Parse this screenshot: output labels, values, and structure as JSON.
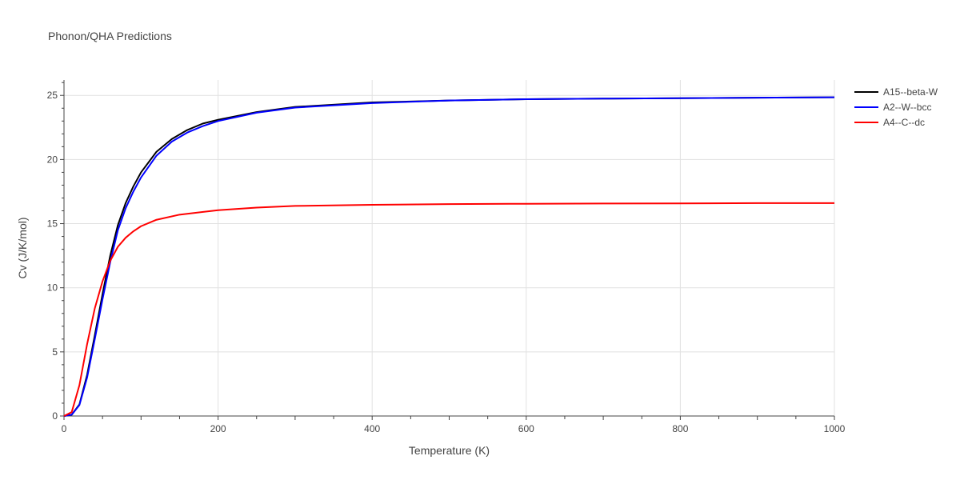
{
  "chart_data": {
    "type": "line",
    "title": "Phonon/QHA Predictions",
    "xlabel": "Temperature (K)",
    "ylabel": "Cv (J/K/mol)",
    "xlim": [
      0,
      1000
    ],
    "ylim": [
      0,
      26.2
    ],
    "x_ticks": [
      0,
      200,
      400,
      600,
      800,
      1000
    ],
    "y_ticks": [
      0,
      5,
      10,
      15,
      20,
      25
    ],
    "grid": true,
    "legend_position": "top-right",
    "series": [
      {
        "name": "A15--beta-W",
        "color": "#000000",
        "points": [
          [
            0,
            0
          ],
          [
            10,
            0.1
          ],
          [
            20,
            0.9
          ],
          [
            30,
            3.2
          ],
          [
            40,
            6.3
          ],
          [
            50,
            9.5
          ],
          [
            60,
            12.5
          ],
          [
            70,
            14.9
          ],
          [
            80,
            16.6
          ],
          [
            90,
            17.9
          ],
          [
            100,
            19.0
          ],
          [
            120,
            20.6
          ],
          [
            140,
            21.6
          ],
          [
            160,
            22.3
          ],
          [
            180,
            22.8
          ],
          [
            200,
            23.1
          ],
          [
            250,
            23.7
          ],
          [
            300,
            24.1
          ],
          [
            400,
            24.45
          ],
          [
            500,
            24.6
          ],
          [
            600,
            24.7
          ],
          [
            700,
            24.75
          ],
          [
            800,
            24.78
          ],
          [
            900,
            24.82
          ],
          [
            1000,
            24.85
          ]
        ]
      },
      {
        "name": "A2--W--bcc",
        "color": "#0000ff",
        "points": [
          [
            0,
            0
          ],
          [
            10,
            0.1
          ],
          [
            20,
            0.85
          ],
          [
            30,
            3.0
          ],
          [
            40,
            6.0
          ],
          [
            50,
            9.1
          ],
          [
            60,
            12.0
          ],
          [
            70,
            14.5
          ],
          [
            80,
            16.2
          ],
          [
            90,
            17.5
          ],
          [
            100,
            18.6
          ],
          [
            120,
            20.3
          ],
          [
            140,
            21.4
          ],
          [
            160,
            22.1
          ],
          [
            180,
            22.6
          ],
          [
            200,
            23.0
          ],
          [
            250,
            23.65
          ],
          [
            300,
            24.05
          ],
          [
            400,
            24.4
          ],
          [
            500,
            24.6
          ],
          [
            600,
            24.7
          ],
          [
            700,
            24.75
          ],
          [
            800,
            24.78
          ],
          [
            900,
            24.82
          ],
          [
            1000,
            24.85
          ]
        ]
      },
      {
        "name": "A4--C--dc",
        "color": "#ff0000",
        "points": [
          [
            0,
            0
          ],
          [
            10,
            0.3
          ],
          [
            20,
            2.4
          ],
          [
            30,
            5.6
          ],
          [
            40,
            8.4
          ],
          [
            50,
            10.5
          ],
          [
            60,
            12.1
          ],
          [
            70,
            13.2
          ],
          [
            80,
            13.9
          ],
          [
            90,
            14.4
          ],
          [
            100,
            14.8
          ],
          [
            120,
            15.3
          ],
          [
            150,
            15.7
          ],
          [
            200,
            16.05
          ],
          [
            250,
            16.25
          ],
          [
            300,
            16.38
          ],
          [
            400,
            16.47
          ],
          [
            500,
            16.52
          ],
          [
            600,
            16.55
          ],
          [
            700,
            16.57
          ],
          [
            800,
            16.58
          ],
          [
            900,
            16.6
          ],
          [
            1000,
            16.6
          ]
        ]
      }
    ]
  }
}
